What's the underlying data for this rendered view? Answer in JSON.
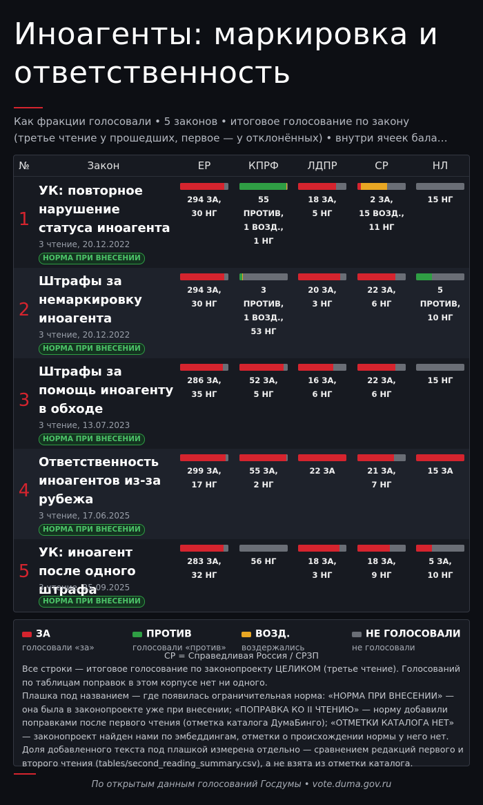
{
  "title": "Иноагенты: маркировка и ответственность",
  "subtitle": {
    "line1": "Как фракции голосовали • 5 законов • итоговое голосование по закону",
    "line2": "(третье чтение у прошедших, первое — у отклонённых) • внутри ячеек бала…"
  },
  "table": {
    "headers": {
      "num": "№",
      "law": "Закон",
      "er": "ЕР",
      "kprf": "КПРФ",
      "ldpr": "ЛДПР",
      "sr": "СР",
      "nl": "НЛ"
    },
    "rows": [
      {
        "num": "1",
        "name": "УК: повторное нарушение статуса иноагента",
        "date": "3 чтение, 20.12.2022",
        "badge": "НОРМА ПРИ ВНЕСЕНИИ",
        "votes": {
          "er": {
            "label": "294 ЗА,\n30 НГ",
            "za": 294,
            "protiv": 0,
            "vozd": 0,
            "ng": 30
          },
          "kprf": {
            "label": "55 ПРОТИВ,\n1 ВОЗД.,\n1 НГ",
            "za": 0,
            "protiv": 55,
            "vozd": 1,
            "ng": 1
          },
          "ldpr": {
            "label": "18 ЗА,\n5 НГ",
            "za": 18,
            "protiv": 0,
            "vozd": 0,
            "ng": 5
          },
          "sr": {
            "label": "2 ЗА,\n15 ВОЗД.,\n11 НГ",
            "za": 2,
            "protiv": 0,
            "vozd": 15,
            "ng": 11
          },
          "nl": {
            "label": "15 НГ",
            "za": 0,
            "protiv": 0,
            "vozd": 0,
            "ng": 15
          }
        }
      },
      {
        "num": "2",
        "name": "Штрафы за немаркировку иноагента",
        "date": "3 чтение, 20.12.2022",
        "badge": "НОРМА ПРИ ВНЕСЕНИИ",
        "votes": {
          "er": {
            "label": "294 ЗА,\n30 НГ",
            "za": 294,
            "protiv": 0,
            "vozd": 0,
            "ng": 30
          },
          "kprf": {
            "label": "3 ПРОТИВ,\n1 ВОЗД.,\n53 НГ",
            "za": 0,
            "protiv": 3,
            "vozd": 1,
            "ng": 53
          },
          "ldpr": {
            "label": "20 ЗА,\n3 НГ",
            "za": 20,
            "protiv": 0,
            "vozd": 0,
            "ng": 3
          },
          "sr": {
            "label": "22 ЗА,\n6 НГ",
            "za": 22,
            "protiv": 0,
            "vozd": 0,
            "ng": 6
          },
          "nl": {
            "label": "5 ПРОТИВ,\n10 НГ",
            "za": 0,
            "protiv": 5,
            "vozd": 0,
            "ng": 10
          }
        }
      },
      {
        "num": "3",
        "name": "Штрафы за помощь иноагенту в обходе",
        "date": "3 чтение, 13.07.2023",
        "badge": "НОРМА ПРИ ВНЕСЕНИИ",
        "votes": {
          "er": {
            "label": "286 ЗА,\n35 НГ",
            "za": 286,
            "protiv": 0,
            "vozd": 0,
            "ng": 35
          },
          "kprf": {
            "label": "52 ЗА,\n5 НГ",
            "za": 52,
            "protiv": 0,
            "vozd": 0,
            "ng": 5
          },
          "ldpr": {
            "label": "16 ЗА,\n6 НГ",
            "za": 16,
            "protiv": 0,
            "vozd": 0,
            "ng": 6
          },
          "sr": {
            "label": "22 ЗА,\n6 НГ",
            "za": 22,
            "protiv": 0,
            "vozd": 0,
            "ng": 6
          },
          "nl": {
            "label": "15 НГ",
            "za": 0,
            "protiv": 0,
            "vozd": 0,
            "ng": 15
          }
        }
      },
      {
        "num": "4",
        "name": "Ответственность иноагентов из-за рубежа",
        "date": "3 чтение, 17.06.2025",
        "badge": "НОРМА ПРИ ВНЕСЕНИИ",
        "votes": {
          "er": {
            "label": "299 ЗА,\n17 НГ",
            "za": 299,
            "protiv": 0,
            "vozd": 0,
            "ng": 17
          },
          "kprf": {
            "label": "55 ЗА,\n2 НГ",
            "za": 55,
            "protiv": 0,
            "vozd": 0,
            "ng": 2
          },
          "ldpr": {
            "label": "22 ЗА",
            "za": 22,
            "protiv": 0,
            "vozd": 0,
            "ng": 0
          },
          "sr": {
            "label": "21 ЗА,\n7 НГ",
            "za": 21,
            "protiv": 0,
            "vozd": 0,
            "ng": 7
          },
          "nl": {
            "label": "15 ЗА",
            "za": 15,
            "protiv": 0,
            "vozd": 0,
            "ng": 0
          }
        }
      },
      {
        "num": "5",
        "name": "УК: иноагент после одного штрафа",
        "date": "3 чтение, 25.09.2025",
        "badge": "НОРМА ПРИ ВНЕСЕНИИ",
        "votes": {
          "er": {
            "label": "283 ЗА,\n32 НГ",
            "za": 283,
            "protiv": 0,
            "vozd": 0,
            "ng": 32
          },
          "kprf": {
            "label": "56 НГ",
            "za": 0,
            "protiv": 0,
            "vozd": 0,
            "ng": 56
          },
          "ldpr": {
            "label": "18 ЗА,\n3 НГ",
            "za": 18,
            "protiv": 0,
            "vozd": 0,
            "ng": 3
          },
          "sr": {
            "label": "18 ЗА,\n9 НГ",
            "za": 18,
            "protiv": 0,
            "vozd": 0,
            "ng": 9
          },
          "nl": {
            "label": "5 ЗА,\n10 НГ",
            "za": 5,
            "protiv": 0,
            "vozd": 0,
            "ng": 10
          }
        }
      }
    ]
  },
  "colors": {
    "za": "#d5242e",
    "protiv": "#2f9e44",
    "vozd": "#e8a623",
    "ng": "#6a6e76"
  },
  "legend": {
    "items": [
      {
        "key": "za",
        "label": "ЗА",
        "sub": "голосовали «за»"
      },
      {
        "key": "protiv",
        "label": "ПРОТИВ",
        "sub": "голосовали «против»"
      },
      {
        "key": "vozd",
        "label": "ВОЗД.",
        "sub": "воздержались"
      },
      {
        "key": "ng",
        "label": "НЕ ГОЛОСОВАЛИ",
        "sub": "не голосовали"
      }
    ],
    "abbr": "СР = Справедливая Россия / СРЗП",
    "note1": "Все строки — итоговое голосование по законопроекту ЦЕЛИКОМ (третье чтение). Голосований по таблицам поправок в этом корпусе нет ни одного.",
    "note2": "Плашка под названием — где появилась ограничительная норма: «НОРМА ПРИ ВНЕСЕНИИ» — она была в законопроекте уже при внесении; «ПОПРАВКА КО II ЧТЕНИЮ» — норму добавили поправками после первого чтения (отметка каталога ДумаБинго); «ОТМЕТКИ КАТАЛОГА НЕТ» — законопроект найден нами по эмбеддингам, отметки о происхождении нормы у него нет.",
    "note3": "Доля добавленного текста под плашкой измерена отдельно — сравнением редакций первого и второго чтения (tables/second_reading_summary.csv), а не взята из отметки каталога."
  },
  "footer": "По открытым данным голосований Госдумы • vote.duma.gov.ru"
}
